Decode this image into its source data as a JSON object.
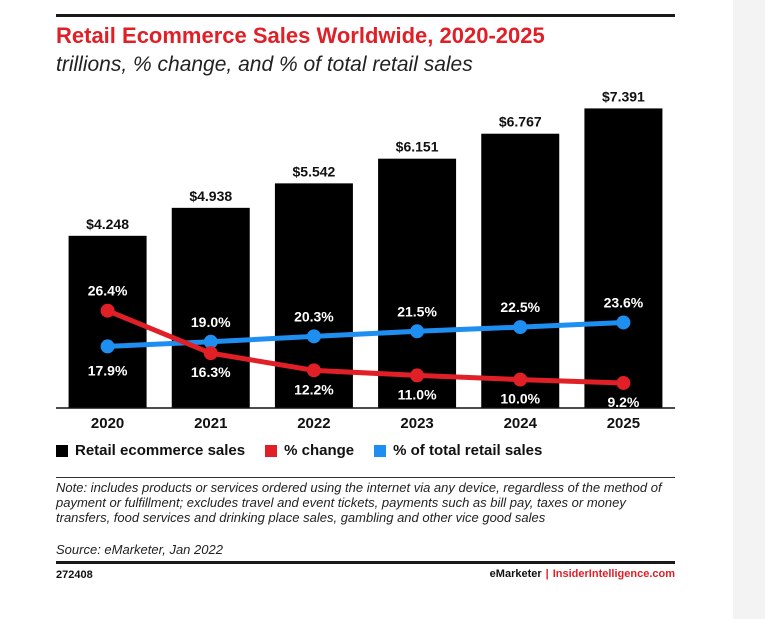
{
  "header": {
    "title": "Retail Ecommerce Sales Worldwide, 2020-2025",
    "subtitle": "trillions, % change, and % of total retail sales"
  },
  "colors": {
    "bars": "#000000",
    "change_line": "#e01f26",
    "share_line": "#1e8ef0",
    "title": "#e01f26"
  },
  "chart_data": {
    "type": "bar",
    "categories": [
      "2020",
      "2021",
      "2022",
      "2023",
      "2024",
      "2025"
    ],
    "series": [
      {
        "name": "Retail ecommerce sales",
        "type": "bar",
        "values": [
          4.248,
          4.938,
          5.542,
          6.151,
          6.767,
          7.391
        ],
        "labels": [
          "$4.248",
          "$4.938",
          "$5.542",
          "$6.151",
          "$6.767",
          "$7.391"
        ]
      },
      {
        "name": "% change",
        "type": "line",
        "values": [
          26.4,
          16.3,
          12.2,
          11.0,
          10.0,
          9.2
        ],
        "labels": [
          "26.4%",
          "16.3%",
          "12.2%",
          "11.0%",
          "10.0%",
          "9.2%"
        ]
      },
      {
        "name": "% of total retail sales",
        "type": "line",
        "values": [
          17.9,
          19.0,
          20.3,
          21.5,
          22.5,
          23.6
        ],
        "labels": [
          "17.9%",
          "19.0%",
          "20.3%",
          "21.5%",
          "22.5%",
          "23.6%"
        ]
      }
    ],
    "ylim_bars": [
      0,
      7.5
    ],
    "grid": false,
    "legend": "bottom"
  },
  "legend": {
    "items": [
      {
        "label": "Retail ecommerce sales",
        "color": "#000000"
      },
      {
        "label": "% change",
        "color": "#e01f26"
      },
      {
        "label": "% of total retail sales",
        "color": "#1e8ef0"
      }
    ]
  },
  "footer": {
    "note": "Note: includes products or services ordered using the internet via any device, regardless of the method of payment or fulfillment; excludes travel and event tickets, payments such as bill pay, taxes or money transfers, food services and drinking place sales, gambling and other vice good sales",
    "source": "Source: eMarketer, Jan 2022",
    "chart_id": "272408",
    "brand_left": "eMarketer",
    "brand_sep": "|",
    "brand_right": "InsiderIntelligence.com"
  }
}
